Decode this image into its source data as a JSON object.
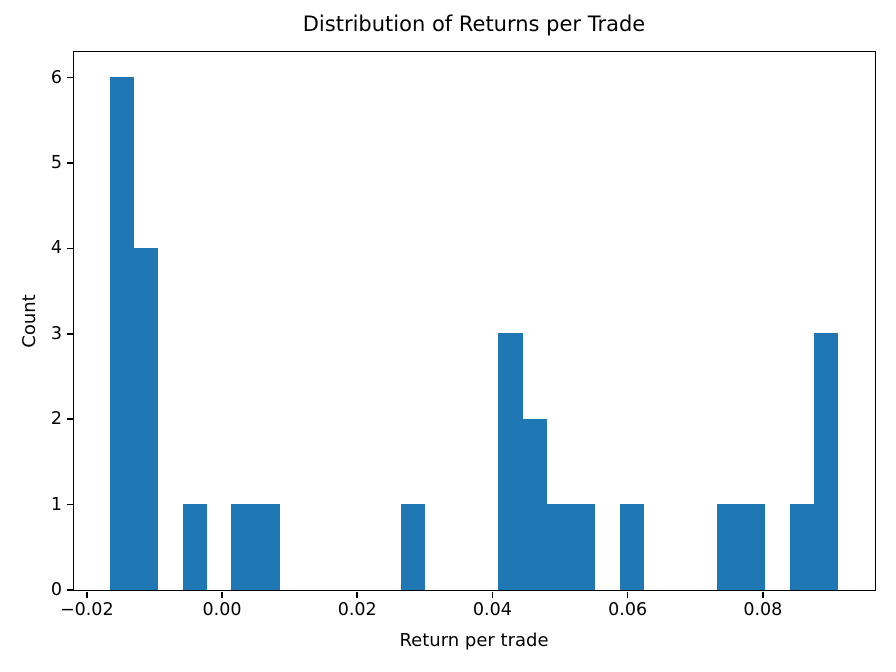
{
  "chart_data": {
    "type": "bar",
    "subtype": "histogram",
    "title": "Distribution of Returns per Trade",
    "xlabel": "Return per trade",
    "ylabel": "Count",
    "bar_color": "#1f77b4",
    "background_color": "#ffffff",
    "grid": false,
    "legend_position": "none",
    "bin_start": -0.0165,
    "bin_width": 0.00359,
    "bin_counts": [
      6,
      4,
      0,
      1,
      0,
      1,
      1,
      0,
      0,
      0,
      0,
      0,
      1,
      0,
      0,
      0,
      3,
      2,
      1,
      1,
      0,
      1,
      0,
      0,
      0,
      1,
      1,
      0,
      1,
      3
    ],
    "total_count": 28,
    "xlim": [
      -0.02189,
      0.09659
    ],
    "ylim": [
      0,
      6.3
    ],
    "xticks": [
      {
        "value": -0.02,
        "label": "−0.02"
      },
      {
        "value": 0.0,
        "label": "0.00"
      },
      {
        "value": 0.02,
        "label": "0.02"
      },
      {
        "value": 0.04,
        "label": "0.04"
      },
      {
        "value": 0.06,
        "label": "0.06"
      },
      {
        "value": 0.08,
        "label": "0.08"
      }
    ],
    "yticks": [
      {
        "value": 0,
        "label": "0"
      },
      {
        "value": 1,
        "label": "1"
      },
      {
        "value": 2,
        "label": "2"
      },
      {
        "value": 3,
        "label": "3"
      },
      {
        "value": 4,
        "label": "4"
      },
      {
        "value": 5,
        "label": "5"
      },
      {
        "value": 6,
        "label": "6"
      }
    ]
  }
}
